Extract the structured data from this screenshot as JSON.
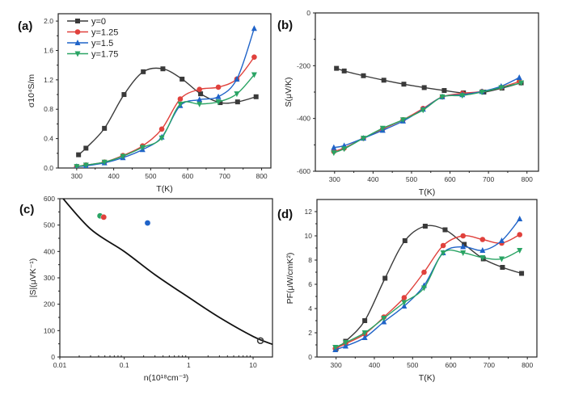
{
  "colors": {
    "y=0": "#3a3a3a",
    "y=1.25": "#e0413c",
    "y=1.5": "#1f63c8",
    "y=1.75": "#2aa464"
  },
  "chart_data": [
    {
      "id": "a",
      "panel_label": "(a)",
      "type": "line",
      "xlabel": "T(K)",
      "ylabel": "σ10⁴S/m",
      "xlim": [
        250,
        825
      ],
      "ylim": [
        0,
        2.1
      ],
      "xticks": [
        300,
        400,
        500,
        600,
        700,
        800
      ],
      "yticks": [
        0.0,
        0.4,
        0.8,
        1.2,
        1.6,
        2.0
      ],
      "ytick_decimals": 1,
      "legend": "top-left",
      "series": [
        {
          "name": "y=0",
          "marker": "square",
          "x": [
            305,
            325,
            375,
            428,
            480,
            533,
            585,
            635,
            688,
            735,
            785
          ],
          "y": [
            0.18,
            0.27,
            0.54,
            1.0,
            1.31,
            1.35,
            1.21,
            1.01,
            0.89,
            0.9,
            0.97
          ]
        },
        {
          "name": "y=1.25",
          "marker": "circle",
          "x": [
            300,
            325,
            375,
            425,
            478,
            530,
            580,
            632,
            683,
            733,
            780
          ],
          "y": [
            0.02,
            0.04,
            0.08,
            0.17,
            0.3,
            0.53,
            0.94,
            1.07,
            1.1,
            1.21,
            1.51
          ]
        },
        {
          "name": "y=1.5",
          "marker": "triangle-up",
          "x": [
            300,
            325,
            375,
            425,
            478,
            530,
            580,
            632,
            683,
            733,
            780
          ],
          "y": [
            0.02,
            0.03,
            0.07,
            0.14,
            0.25,
            0.42,
            0.85,
            0.93,
            0.97,
            1.21,
            1.9
          ]
        },
        {
          "name": "y=1.75",
          "marker": "triangle-down",
          "x": [
            300,
            325,
            375,
            425,
            478,
            530,
            580,
            632,
            683,
            733,
            780
          ],
          "y": [
            0.02,
            0.04,
            0.08,
            0.16,
            0.28,
            0.41,
            0.87,
            0.87,
            0.9,
            1.01,
            1.27
          ]
        }
      ]
    },
    {
      "id": "b",
      "panel_label": "(b)",
      "type": "line",
      "xlabel": "T(K)",
      "ylabel": "S(μV/K)",
      "xlim": [
        250,
        830
      ],
      "ylim": [
        -600,
        0
      ],
      "xticks": [
        300,
        400,
        500,
        600,
        700,
        800
      ],
      "yticks": [
        -600,
        -400,
        -200,
        0
      ],
      "ytick_decimals": 0,
      "series": [
        {
          "name": "y=0",
          "marker": "square",
          "x": [
            305,
            325,
            375,
            428,
            480,
            533,
            585,
            635,
            688,
            735,
            785
          ],
          "y": [
            -210,
            -220,
            -238,
            -255,
            -270,
            -283,
            -294,
            -303,
            -300,
            -285,
            -265
          ]
        },
        {
          "name": "y=1.25",
          "marker": "circle",
          "x": [
            298,
            325,
            375,
            425,
            478,
            530,
            580,
            632,
            683,
            733,
            780
          ],
          "y": [
            -525,
            -512,
            -475,
            -440,
            -405,
            -362,
            -318,
            -305,
            -298,
            -282,
            -260
          ]
        },
        {
          "name": "y=1.5",
          "marker": "triangle-up",
          "x": [
            298,
            325,
            375,
            425,
            478,
            530,
            580,
            632,
            683,
            733,
            780
          ],
          "y": [
            -510,
            -503,
            -475,
            -445,
            -410,
            -365,
            -318,
            -310,
            -298,
            -278,
            -245
          ]
        },
        {
          "name": "y=1.75",
          "marker": "triangle-down",
          "x": [
            298,
            325,
            375,
            425,
            478,
            530,
            580,
            632,
            683,
            733,
            785
          ],
          "y": [
            -530,
            -515,
            -475,
            -437,
            -405,
            -368,
            -318,
            -313,
            -300,
            -283,
            -265
          ]
        }
      ]
    },
    {
      "id": "c",
      "panel_label": "(c)",
      "type": "scatter",
      "xlabel": "n(10¹⁸cm⁻³)",
      "ylabel": "|S|(μVK⁻¹)",
      "xscale": "log",
      "xlim": [
        0.01,
        20
      ],
      "ylim": [
        0,
        600
      ],
      "xticks": [
        0.01,
        0.1,
        1,
        10
      ],
      "xticklabels": [
        "0.01",
        "0.1",
        "1",
        "10"
      ],
      "yticks": [
        0,
        100,
        200,
        300,
        400,
        500,
        600
      ],
      "ytick_decimals": 0,
      "curve": {
        "x": [
          0.01,
          0.03,
          0.1,
          0.3,
          1,
          3,
          10,
          20
        ],
        "y": [
          615,
          485,
          400,
          312,
          226,
          150,
          78,
          48
        ]
      },
      "points": [
        {
          "series": "y=1.75",
          "x": 0.042,
          "y": 535
        },
        {
          "series": "y=1.25",
          "x": 0.048,
          "y": 530
        },
        {
          "series": "y=1.5",
          "x": 0.23,
          "y": 508
        },
        {
          "series": "y=0",
          "x": 13,
          "y": 62,
          "open": true
        }
      ]
    },
    {
      "id": "d",
      "panel_label": "(d)",
      "type": "line",
      "xlabel": "T(K)",
      "ylabel": "PF(μW/cmK²)",
      "xlim": [
        250,
        825
      ],
      "ylim": [
        0,
        13
      ],
      "xticks": [
        300,
        400,
        500,
        600,
        700,
        800
      ],
      "yticks": [
        0,
        2,
        4,
        6,
        8,
        10,
        12
      ],
      "ytick_decimals": 0,
      "series": [
        {
          "name": "y=0",
          "marker": "square",
          "x": [
            300,
            325,
            375,
            428,
            480,
            533,
            585,
            635,
            685,
            735,
            785
          ],
          "y": [
            0.7,
            1.3,
            3.0,
            6.5,
            9.6,
            10.8,
            10.5,
            9.3,
            8.1,
            7.4,
            6.9
          ]
        },
        {
          "name": "y=1.25",
          "marker": "circle",
          "x": [
            298,
            325,
            375,
            425,
            478,
            530,
            580,
            632,
            683,
            733,
            780
          ],
          "y": [
            0.7,
            1.1,
            1.9,
            3.3,
            4.9,
            7.0,
            9.2,
            10.0,
            9.7,
            9.4,
            10.1
          ]
        },
        {
          "name": "y=1.5",
          "marker": "triangle-up",
          "x": [
            298,
            325,
            375,
            425,
            478,
            530,
            580,
            632,
            683,
            733,
            780
          ],
          "y": [
            0.6,
            0.9,
            1.6,
            2.9,
            4.2,
            5.9,
            8.6,
            9.1,
            8.8,
            9.6,
            11.4
          ]
        },
        {
          "name": "y=1.75",
          "marker": "triangle-down",
          "x": [
            298,
            325,
            375,
            425,
            478,
            530,
            580,
            632,
            683,
            733,
            780
          ],
          "y": [
            0.8,
            1.2,
            2.0,
            3.2,
            4.5,
            5.7,
            8.6,
            8.6,
            8.2,
            8.1,
            8.8
          ]
        }
      ]
    }
  ]
}
